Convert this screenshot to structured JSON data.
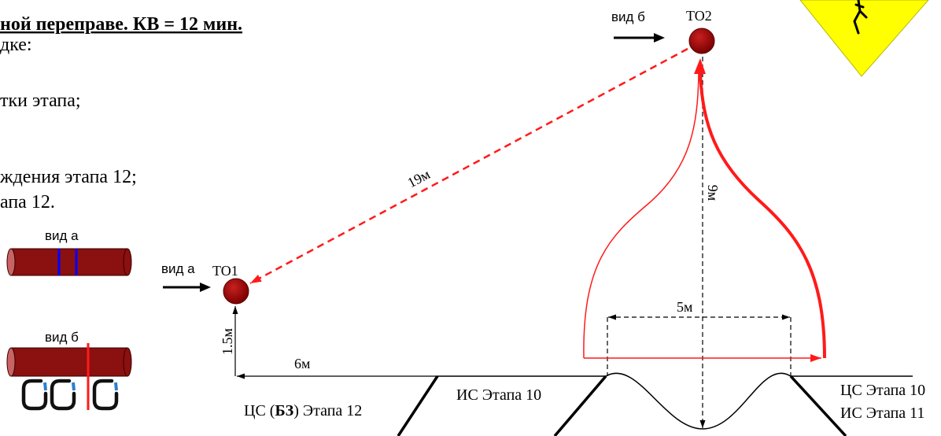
{
  "instructions": {
    "title": "ной переправе. КВ = 12 мин.",
    "lines": [
      "дке:",
      "тки этапа;",
      "ждения этапа 12;",
      "апа 12."
    ]
  },
  "legend": {
    "view_a_label": "вид а",
    "view_b_label": "вид б"
  },
  "to1": {
    "view_label": "вид а",
    "label": "ТО1"
  },
  "to2": {
    "view_label": "вид б",
    "label": "ТО2"
  },
  "dimensions": {
    "to1_height": "1.5м",
    "to1_offset": "6м",
    "diagonal": "19м",
    "to2_height": "9м",
    "gap_width": "5м"
  },
  "zones": {
    "stage12_prefix": "ЦС (",
    "stage12_bold": "БЗ",
    "stage12_suffix": ") Этапа 12",
    "stage10_start": "ИС Этапа 10",
    "stage10_end": "ЦС Этапа 10",
    "stage11_start": "ИС Этапа 11"
  },
  "colors": {
    "rope": "#ff1a1a",
    "node": "#990000",
    "marker": "#0000ff",
    "warning": "#ffff00"
  },
  "icons": {
    "warning": "warning-triangle-icon"
  }
}
